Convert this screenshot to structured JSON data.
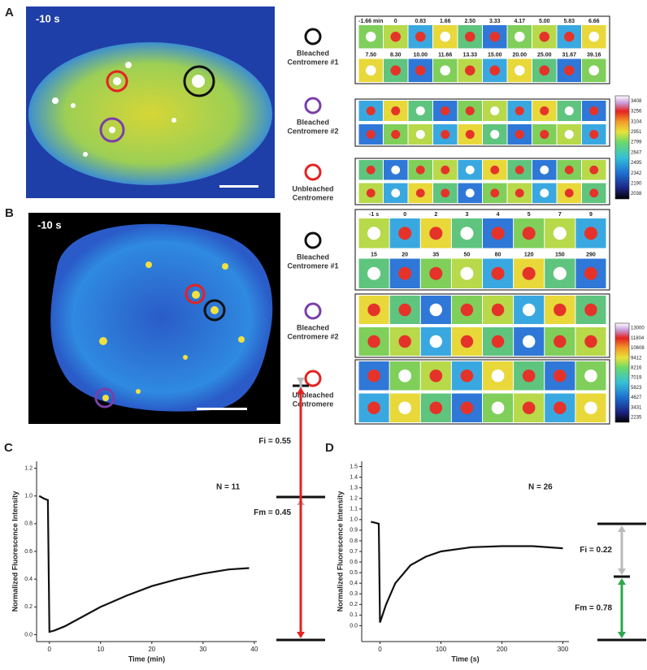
{
  "panels": [
    {
      "label": "A",
      "image_time": "-10 s",
      "legend": [
        {
          "lines": [
            "Bleached",
            "Centromere #1"
          ]
        },
        {
          "lines": [
            "Bleached",
            "Centromere #2"
          ]
        },
        {
          "lines": [
            "Unbleached",
            "Centromere"
          ]
        }
      ],
      "montage_times": [
        [
          "-1.66 min",
          "0",
          "0.83",
          "1.66",
          "2.50",
          "3.33",
          "4.17",
          "5.00",
          "5.83",
          "6.66"
        ],
        [
          "7.50",
          "8.30",
          "10.00",
          "11.66",
          "13.33",
          "15.00",
          "20.00",
          "25.00",
          "31.67",
          "39.16"
        ]
      ],
      "colorbar_ticks": [
        3408,
        3256,
        3104,
        2951,
        2799,
        2647,
        2495,
        2342,
        2190,
        2038
      ]
    },
    {
      "label": "B",
      "image_time": "-10 s",
      "legend": [
        {
          "lines": [
            "Bleached",
            "Centromere #1"
          ]
        },
        {
          "lines": [
            "Bleached",
            "Centromere #2"
          ]
        },
        {
          "lines": [
            "Unbleached",
            "Centromere"
          ]
        }
      ],
      "montage_times": [
        [
          "-1 s",
          "0",
          "2",
          "3",
          "4",
          "5",
          "7",
          "9"
        ],
        [
          "15",
          "20",
          "35",
          "50",
          "80",
          "120",
          "150",
          "290"
        ]
      ],
      "colorbar_ticks": [
        13000,
        11804,
        10608,
        9412,
        8216,
        7019,
        5823,
        4627,
        3431,
        2235
      ]
    }
  ],
  "chart_data": [
    {
      "type": "line",
      "panel": "C",
      "x_label": "Time (min)",
      "y_label": "Normalized Fluorescence Intensity",
      "annotations": [
        "N = 11",
        "Fi = 0.55",
        "Fm = 0.45"
      ],
      "xlim": [
        -2.5,
        40.5
      ],
      "ylim": [
        -0.05,
        1.25
      ],
      "xticks": [
        0,
        10,
        20,
        30,
        40
      ],
      "yticks": [
        {
          "value": 0,
          "label": "0.0"
        },
        0.2,
        0.4,
        0.6,
        0.8,
        {
          "value": 1,
          "label": "1.0"
        },
        1.2
      ],
      "x": [
        -2,
        -1,
        -0.3,
        0,
        1,
        3,
        5,
        10,
        15,
        20,
        25,
        30,
        35,
        39
      ],
      "series": [
        {
          "color": "#111111",
          "values": [
            1.0,
            0.98,
            0.97,
            0.02,
            0.03,
            0.06,
            0.1,
            0.2,
            0.28,
            0.35,
            0.4,
            0.44,
            0.47,
            0.48
          ]
        }
      ]
    },
    {
      "type": "line",
      "panel": "D",
      "x_label": "Time (s)",
      "y_label": "Normalized Fluorescence Intensity",
      "annotations": [
        "N = 26",
        "Fi = 0.22",
        "Fm = 0.78"
      ],
      "xlim": [
        -30,
        310
      ],
      "ylim": [
        -0.15,
        1.55
      ],
      "xticks": [
        0,
        100,
        200,
        300
      ],
      "yticks": [
        {
          "value": 0,
          "label": "0.0"
        },
        0.1,
        0.2,
        0.3,
        0.4,
        0.5,
        0.6,
        0.7,
        0.8,
        0.9,
        {
          "value": 1,
          "label": "1.0"
        },
        1.1,
        1.2,
        1.3,
        1.4,
        1.5
      ],
      "x": [
        -15,
        -8,
        -2,
        0,
        10,
        25,
        50,
        75,
        100,
        150,
        200,
        250,
        300
      ],
      "series": [
        {
          "color": "#111111",
          "values": [
            0.98,
            0.97,
            0.96,
            0.03,
            0.2,
            0.4,
            0.57,
            0.65,
            0.7,
            0.74,
            0.75,
            0.75,
            0.73
          ]
        }
      ]
    }
  ]
}
